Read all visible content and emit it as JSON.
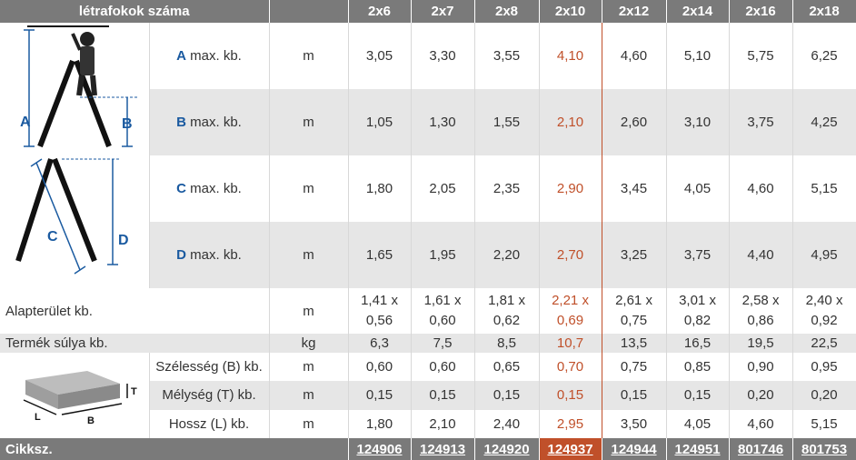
{
  "header": {
    "title": "létrafokok száma",
    "columns": [
      "2x6",
      "2x7",
      "2x8",
      "2x10",
      "2x12",
      "2x14",
      "2x16",
      "2x18"
    ]
  },
  "rows": [
    {
      "letter": "A",
      "label": "max. kb.",
      "unit": "m",
      "values": [
        "3,05",
        "3,30",
        "3,55",
        "4,10",
        "4,60",
        "5,10",
        "5,75",
        "6,25"
      ]
    },
    {
      "letter": "B",
      "label": "max. kb.",
      "unit": "m",
      "values": [
        "1,05",
        "1,30",
        "1,55",
        "2,10",
        "2,60",
        "3,10",
        "3,75",
        "4,25"
      ]
    },
    {
      "letter": "C",
      "label": "max. kb.",
      "unit": "m",
      "values": [
        "1,80",
        "2,05",
        "2,35",
        "2,90",
        "3,45",
        "4,05",
        "4,60",
        "5,15"
      ]
    },
    {
      "letter": "D",
      "label": "max. kb.",
      "unit": "m",
      "values": [
        "1,65",
        "1,95",
        "2,20",
        "2,70",
        "3,25",
        "3,75",
        "4,40",
        "4,95"
      ]
    }
  ],
  "area": {
    "label": "Alapterület kb.",
    "unit": "m",
    "values": [
      [
        "1,41 x",
        "0,56"
      ],
      [
        "1,61 x",
        "0,60"
      ],
      [
        "1,81 x",
        "0,62"
      ],
      [
        "2,21 x",
        "0,69"
      ],
      [
        "2,61 x",
        "0,75"
      ],
      [
        "3,01 x",
        "0,82"
      ],
      [
        "2,58 x",
        "0,86"
      ],
      [
        "2,40 x",
        "0,92"
      ]
    ]
  },
  "weight": {
    "label": "Termék súlya kb.",
    "unit": "kg",
    "values": [
      "6,3",
      "7,5",
      "8,5",
      "10,7",
      "13,5",
      "16,5",
      "19,5",
      "22,5"
    ]
  },
  "pack": [
    {
      "label": "Szélesség (B) kb.",
      "unit": "m",
      "values": [
        "0,60",
        "0,60",
        "0,65",
        "0,70",
        "0,75",
        "0,85",
        "0,90",
        "0,95"
      ]
    },
    {
      "label": "Mélység (T) kb.",
      "unit": "m",
      "values": [
        "0,15",
        "0,15",
        "0,15",
        "0,15",
        "0,15",
        "0,15",
        "0,20",
        "0,20"
      ]
    },
    {
      "label": "Hossz (L) kb.",
      "unit": "m",
      "values": [
        "1,80",
        "2,10",
        "2,40",
        "2,95",
        "3,50",
        "4,05",
        "4,60",
        "5,15"
      ]
    }
  ],
  "footer": {
    "label": "Cikksz.",
    "values": [
      "124906",
      "124913",
      "124920",
      "124937",
      "124944",
      "124951",
      "801746",
      "801753"
    ]
  },
  "diagram": {
    "a": "A",
    "b": "B",
    "c": "C",
    "d": "D",
    "t": "T",
    "l": "L",
    "bb": "B"
  },
  "colors": {
    "header": "#7a7a7a",
    "highlight": "#c0502a",
    "letters": "#1a5aa0"
  }
}
